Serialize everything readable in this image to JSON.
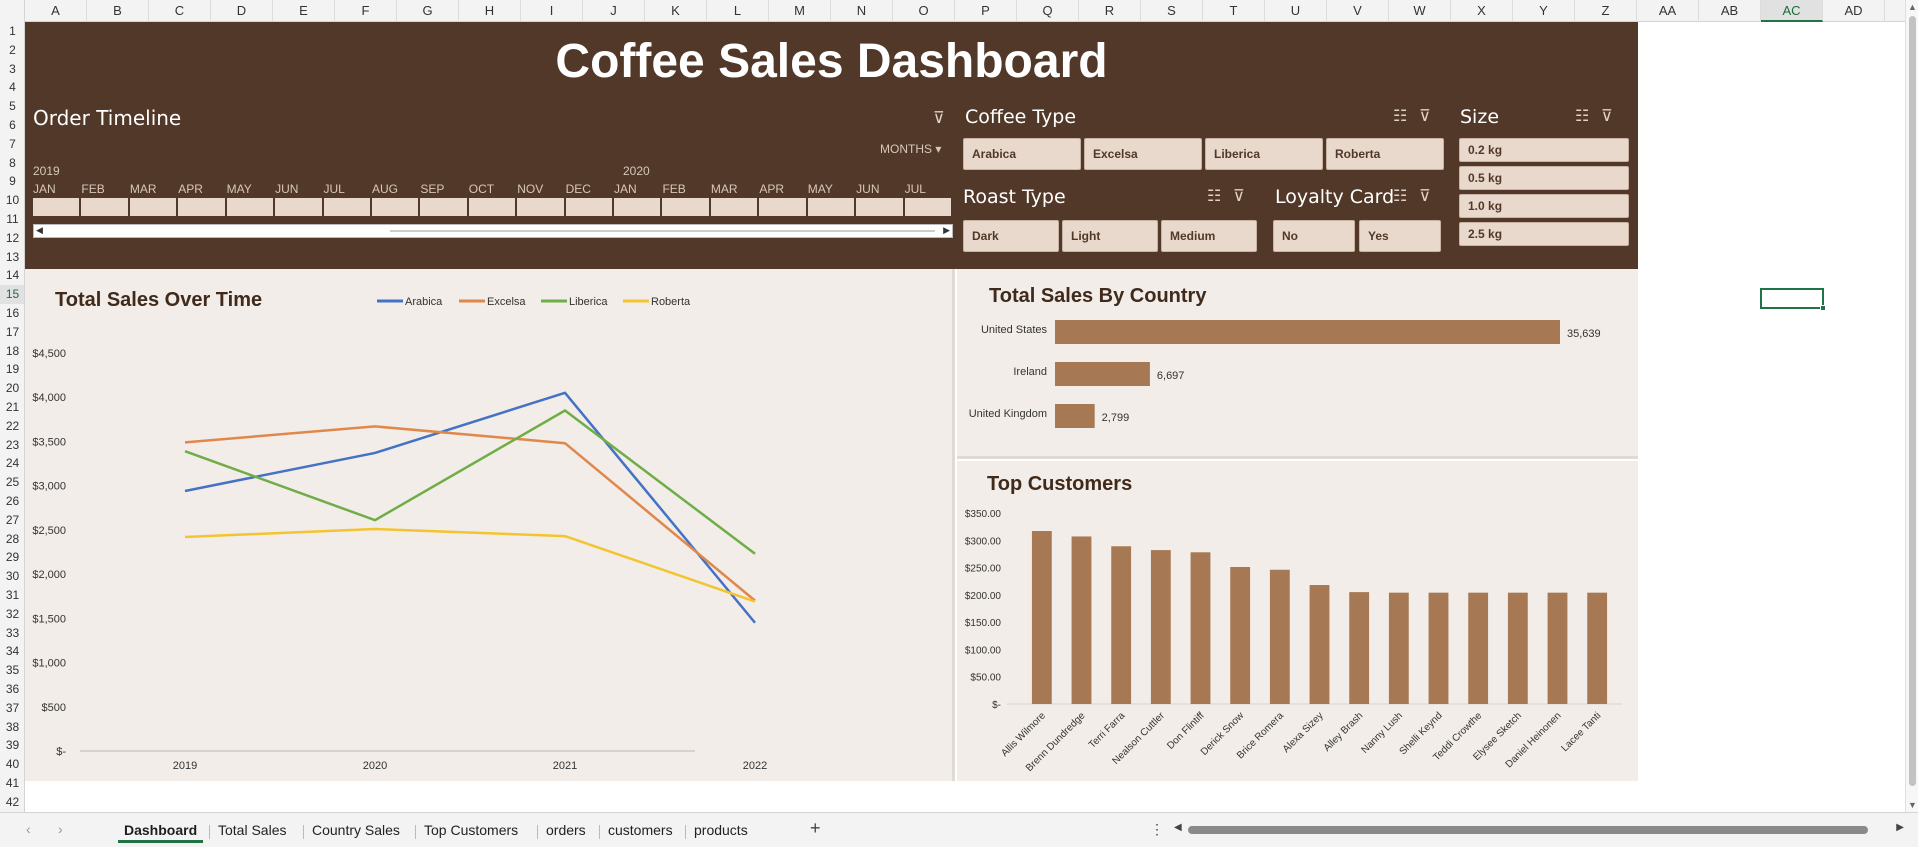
{
  "columns": [
    "A",
    "B",
    "C",
    "D",
    "E",
    "F",
    "G",
    "H",
    "I",
    "J",
    "K",
    "L",
    "M",
    "N",
    "O",
    "P",
    "Q",
    "R",
    "S",
    "T",
    "U",
    "V",
    "W",
    "X",
    "Y",
    "Z",
    "AA",
    "AB",
    "AC",
    "AD"
  ],
  "rows": [
    "1",
    "2",
    "3",
    "4",
    "5",
    "6",
    "7",
    "8",
    "9",
    "10",
    "11",
    "12",
    "13",
    "14",
    "15",
    "16",
    "17",
    "18",
    "19",
    "20",
    "21",
    "22",
    "23",
    "24",
    "25",
    "26",
    "27",
    "28",
    "29",
    "30",
    "31",
    "32",
    "33",
    "34",
    "35",
    "36",
    "37",
    "38",
    "39",
    "40",
    "41",
    "42"
  ],
  "selected_column": "AC",
  "selected_row": "15",
  "dashboard": {
    "title": "Coffee Sales Dashboard",
    "colors": {
      "header_bg": "#523828",
      "panel_bg": "#f2ede8",
      "button_bg": "#e9d8cc",
      "bar": "#a67853"
    }
  },
  "timeline": {
    "title": "Order Timeline",
    "level": "MONTHS",
    "year1": "2019",
    "year2": "2020",
    "months": [
      "JAN",
      "FEB",
      "MAR",
      "APR",
      "MAY",
      "JUN",
      "JUL",
      "AUG",
      "SEP",
      "OCT",
      "NOV",
      "DEC",
      "JAN",
      "FEB",
      "MAR",
      "APR",
      "MAY",
      "JUN",
      "JUL"
    ]
  },
  "slicers": {
    "coffee_type": {
      "title": "Coffee Type",
      "items": [
        "Arabica",
        "Excelsa",
        "Liberica",
        "Roberta"
      ]
    },
    "roast_type": {
      "title": "Roast Type",
      "items": [
        "Dark",
        "Light",
        "Medium"
      ]
    },
    "loyalty_card": {
      "title": "Loyalty Card",
      "items": [
        "No",
        "Yes"
      ]
    },
    "size": {
      "title": "Size",
      "items": [
        "0.2 kg",
        "0.5 kg",
        "1.0 kg",
        "2.5 kg"
      ]
    }
  },
  "icons": {
    "multi_select": "multi-select-icon",
    "clear_filter": "clear-filter-icon"
  },
  "chart_data": [
    {
      "type": "line",
      "title": "Total Sales Over Time",
      "x": [
        "2019",
        "2020",
        "2021",
        "2022"
      ],
      "y_ticks": [
        "$-",
        "$500",
        "$1,000",
        "$1,500",
        "$2,000",
        "$2,500",
        "$3,000",
        "$3,500",
        "$4,000",
        "$4,500"
      ],
      "ylim": [
        0,
        4500
      ],
      "legend_position": "top",
      "series": [
        {
          "name": "Arabica",
          "color": "#4472c4",
          "values": [
            2940,
            3370,
            4050,
            1450
          ]
        },
        {
          "name": "Excelsa",
          "color": "#e0874b",
          "values": [
            3490,
            3670,
            3480,
            1700
          ]
        },
        {
          "name": "Liberica",
          "color": "#70ad47",
          "values": [
            3390,
            2610,
            3850,
            2230
          ]
        },
        {
          "name": "Roberta",
          "color": "#f4c430",
          "values": [
            2420,
            2510,
            2430,
            1690
          ]
        }
      ]
    },
    {
      "type": "bar",
      "orientation": "horizontal",
      "title": "Total Sales By Country",
      "categories": [
        "United States",
        "Ireland",
        "United Kingdom"
      ],
      "values": [
        35639,
        6697,
        2799
      ],
      "labels": [
        "35,639",
        "6,697",
        "2,799"
      ]
    },
    {
      "type": "bar",
      "title": "Top Customers",
      "categories": [
        "Allis Wilmore",
        "Brenn Dundredge",
        "Terri Farra",
        "Nealson Cuttler",
        "Don Flintiff",
        "Derick Snow",
        "Brice Romera",
        "Alexa Sizey",
        "Alley Brash",
        "Nanny Lush",
        "Shelli Keynd",
        "Teddi Crowthe",
        "Elysee Sketch",
        "Daniel Heinonen",
        "Lacee Tanti"
      ],
      "values": [
        317,
        307,
        289,
        282,
        278,
        251,
        246,
        218,
        205,
        204,
        204,
        204,
        204,
        204,
        204
      ],
      "y_ticks": [
        "$-",
        "$50.00",
        "$100.00",
        "$150.00",
        "$200.00",
        "$250.00",
        "$300.00",
        "$350.00"
      ],
      "ylim": [
        0,
        350
      ]
    }
  ],
  "sheet_tabs": [
    "Dashboard",
    "Total Sales",
    "Country Sales",
    "Top Customers",
    "orders",
    "customers",
    "products"
  ],
  "active_tab": "Dashboard"
}
